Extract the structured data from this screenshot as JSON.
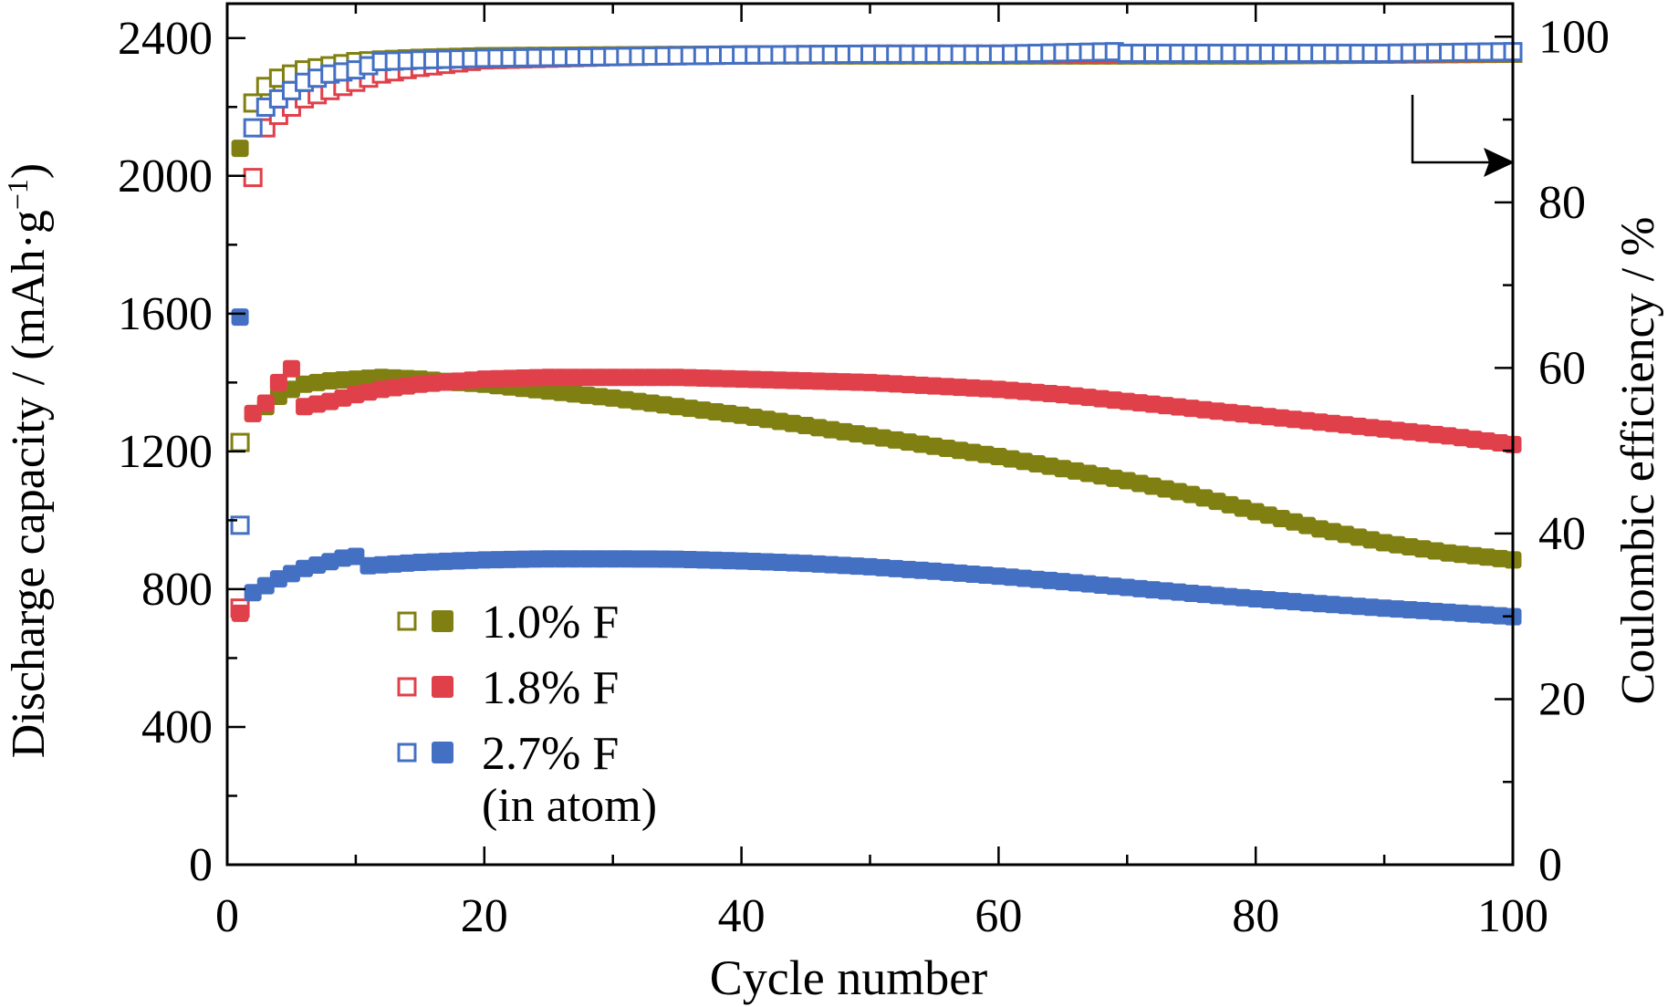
{
  "chart_data": {
    "type": "scatter",
    "xlabel": "Cycle number",
    "ylabel_left": "Discharge capacity / (mAh·g",
    "ylabel_left_sup": "−1",
    "ylabel_left_close": ")",
    "ylabel_right": "Coulombic efficiency / %",
    "xlim": [
      0,
      100
    ],
    "ylim_left": [
      0,
      2500
    ],
    "ylim_right": [
      0,
      104
    ],
    "x_ticks": [
      0,
      20,
      40,
      60,
      80,
      100
    ],
    "y_left_ticks": [
      0,
      400,
      800,
      1200,
      1600,
      2000,
      2400
    ],
    "y_right_ticks": [
      0,
      20,
      40,
      60,
      80,
      100
    ],
    "legend_note": "(in atom)",
    "legend_placement": "lower-left",
    "arrow_direction": "right (coulombic efficiency axis)",
    "open_markers": "Coulombic efficiency (right axis)",
    "filled_markers": "Discharge capacity (left axis)",
    "series": [
      {
        "name": "1.0% F",
        "color": "#808012",
        "discharge_capacity": [
          [
            1,
            2080
          ],
          [
            2,
            1310
          ],
          [
            3,
            1330
          ],
          [
            4,
            1360
          ],
          [
            5,
            1380
          ],
          [
            6,
            1395
          ],
          [
            8,
            1405
          ],
          [
            10,
            1410
          ],
          [
            12,
            1415
          ],
          [
            15,
            1410
          ],
          [
            18,
            1400
          ],
          [
            20,
            1395
          ],
          [
            25,
            1375
          ],
          [
            30,
            1355
          ],
          [
            35,
            1330
          ],
          [
            40,
            1305
          ],
          [
            45,
            1275
          ],
          [
            50,
            1245
          ],
          [
            55,
            1215
          ],
          [
            60,
            1185
          ],
          [
            65,
            1150
          ],
          [
            70,
            1115
          ],
          [
            75,
            1075
          ],
          [
            80,
            1025
          ],
          [
            85,
            975
          ],
          [
            90,
            935
          ],
          [
            95,
            905
          ],
          [
            100,
            885
          ]
        ],
        "coulombic_efficiency": [
          [
            1,
            51
          ],
          [
            2,
            92
          ],
          [
            3,
            94
          ],
          [
            4,
            95
          ],
          [
            5,
            95.5
          ],
          [
            6,
            96
          ],
          [
            8,
            96.5
          ],
          [
            10,
            97
          ],
          [
            12,
            97.2
          ],
          [
            15,
            97.4
          ],
          [
            20,
            97.6
          ],
          [
            30,
            97.7
          ],
          [
            40,
            97.8
          ],
          [
            50,
            97.8
          ],
          [
            60,
            97.8
          ],
          [
            70,
            97.8
          ],
          [
            80,
            97.8
          ],
          [
            90,
            97.9
          ],
          [
            100,
            98
          ]
        ]
      },
      {
        "name": "1.8% F",
        "color": "#e0404a",
        "discharge_capacity": [
          [
            1,
            730
          ],
          [
            2,
            1310
          ],
          [
            3,
            1340
          ],
          [
            4,
            1400
          ],
          [
            5,
            1440
          ],
          [
            6,
            1330
          ],
          [
            8,
            1345
          ],
          [
            10,
            1365
          ],
          [
            12,
            1380
          ],
          [
            15,
            1395
          ],
          [
            20,
            1410
          ],
          [
            25,
            1415
          ],
          [
            30,
            1415
          ],
          [
            35,
            1415
          ],
          [
            40,
            1410
          ],
          [
            45,
            1405
          ],
          [
            50,
            1400
          ],
          [
            55,
            1390
          ],
          [
            60,
            1380
          ],
          [
            65,
            1365
          ],
          [
            70,
            1345
          ],
          [
            75,
            1325
          ],
          [
            80,
            1305
          ],
          [
            85,
            1285
          ],
          [
            90,
            1265
          ],
          [
            95,
            1245
          ],
          [
            100,
            1220
          ]
        ],
        "coulombic_efficiency": [
          [
            1,
            31
          ],
          [
            2,
            83
          ],
          [
            3,
            89
          ],
          [
            4,
            90.5
          ],
          [
            5,
            91.5
          ],
          [
            6,
            92.5
          ],
          [
            8,
            93.5
          ],
          [
            10,
            94.5
          ],
          [
            12,
            95.5
          ],
          [
            15,
            96.3
          ],
          [
            20,
            97.2
          ],
          [
            30,
            97.6
          ],
          [
            40,
            97.8
          ],
          [
            50,
            97.9
          ],
          [
            60,
            97.9
          ],
          [
            70,
            98
          ],
          [
            80,
            98
          ],
          [
            90,
            98
          ],
          [
            100,
            98.1
          ]
        ]
      },
      {
        "name": "2.7% F",
        "color": "#4470c4",
        "discharge_capacity": [
          [
            1,
            1590
          ],
          [
            2,
            790
          ],
          [
            3,
            810
          ],
          [
            4,
            830
          ],
          [
            5,
            845
          ],
          [
            6,
            860
          ],
          [
            7,
            870
          ],
          [
            8,
            880
          ],
          [
            9,
            890
          ],
          [
            10,
            895
          ],
          [
            11,
            868
          ],
          [
            15,
            878
          ],
          [
            20,
            885
          ],
          [
            25,
            888
          ],
          [
            30,
            888
          ],
          [
            35,
            887
          ],
          [
            40,
            882
          ],
          [
            45,
            875
          ],
          [
            50,
            865
          ],
          [
            55,
            852
          ],
          [
            60,
            838
          ],
          [
            65,
            822
          ],
          [
            70,
            805
          ],
          [
            75,
            788
          ],
          [
            80,
            772
          ],
          [
            85,
            758
          ],
          [
            90,
            745
          ],
          [
            95,
            733
          ],
          [
            100,
            720
          ]
        ],
        "coulombic_efficiency": [
          [
            1,
            41
          ],
          [
            2,
            89
          ],
          [
            3,
            91.5
          ],
          [
            4,
            92.5
          ],
          [
            5,
            93.5
          ],
          [
            6,
            94.5
          ],
          [
            8,
            95.5
          ],
          [
            10,
            96
          ],
          [
            12,
            97
          ],
          [
            15,
            97.2
          ],
          [
            20,
            97.4
          ],
          [
            30,
            97.6
          ],
          [
            40,
            97.8
          ],
          [
            50,
            97.9
          ],
          [
            60,
            97.9
          ],
          [
            69,
            98.2
          ],
          [
            70,
            98
          ],
          [
            80,
            98
          ],
          [
            90,
            98
          ],
          [
            100,
            98.2
          ]
        ]
      }
    ]
  }
}
